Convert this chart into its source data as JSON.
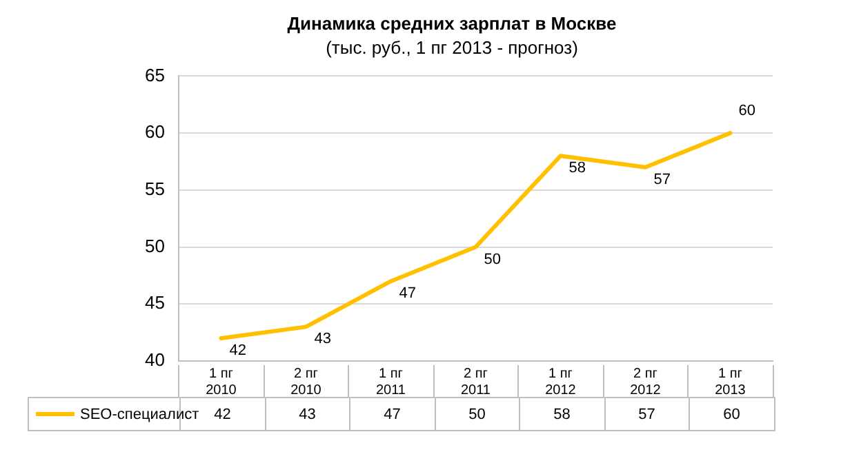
{
  "chart_data": {
    "type": "line",
    "title": "Динамика средних зарплат в Москве",
    "subtitle": "(тыс. руб., 1 пг 2013 - прогноз)",
    "categories": [
      "1 пг 2010",
      "2 пг 2010",
      "1 пг 2011",
      "2 пг 2011",
      "1 пг 2012",
      "2 пг 2012",
      "1 пг 2013"
    ],
    "series": [
      {
        "name": "SEO-специалист",
        "color": "#ffc000",
        "values": [
          42,
          43,
          47,
          50,
          58,
          57,
          60
        ]
      }
    ],
    "annotations": [
      {
        "text": "42",
        "x": "1 пг 2010",
        "y": 42
      },
      {
        "text": "43",
        "x": "2 пг 2010",
        "y": 43
      },
      {
        "text": "47",
        "x": "1 пг 2011",
        "y": 47
      },
      {
        "text": "50",
        "x": "2 пг 2011",
        "y": 50
      },
      {
        "text": "58",
        "x": "1 пг 2012",
        "y": 58
      },
      {
        "text": "57",
        "x": "2 пг 2012",
        "y": 57
      },
      {
        "text": "60",
        "x": "1 пг 2013",
        "y": 60
      }
    ],
    "ylim": [
      40,
      65
    ],
    "yticks": [
      40,
      45,
      50,
      55,
      60,
      65
    ],
    "grid": "y",
    "legend": "bottom left",
    "marker": "none",
    "line_style": "solid",
    "data_labels": true
  }
}
